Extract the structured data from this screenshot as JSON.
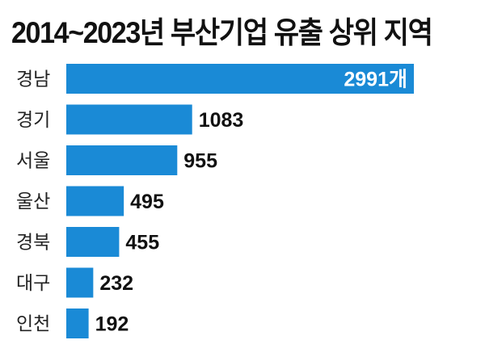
{
  "chart_data": {
    "type": "bar",
    "orientation": "horizontal",
    "title": "2014~2023년 부산기업 유출 상위 지역",
    "categories": [
      "경남",
      "경기",
      "서울",
      "울산",
      "경북",
      "대구",
      "인천"
    ],
    "values": [
      2991,
      1083,
      955,
      495,
      455,
      232,
      192
    ],
    "data_labels": [
      "2991개",
      "1083",
      "955",
      "495",
      "455",
      "232",
      "192"
    ],
    "xlim": [
      0,
      2991
    ],
    "grid": false,
    "bar_color": "#1a8ad6",
    "label_inside_color": "#ffffff"
  }
}
